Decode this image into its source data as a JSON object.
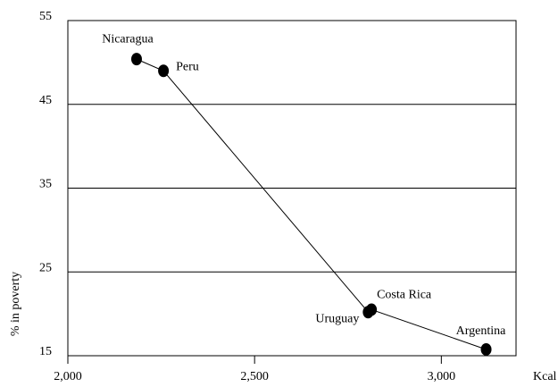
{
  "chart_data": {
    "type": "scatter",
    "x_label": "Kcal",
    "y_label": "% in poverty",
    "labels": [
      "Nicaragua",
      "Peru",
      "Uruguay",
      "Costa Rica",
      "Argentina"
    ],
    "x": [
      2184,
      2256,
      2804,
      2813,
      3120
    ],
    "values": [
      50.4,
      49.0,
      20.2,
      20.5,
      15.75
    ],
    "color": "#000000",
    "connect": true,
    "xlim": [
      2000,
      3200
    ],
    "ylim": [
      15,
      55
    ],
    "xticks": [
      {
        "value": 2000,
        "label": "2,000"
      },
      {
        "value": 2500,
        "label": "2,500"
      },
      {
        "value": 3000,
        "label": "3,000"
      }
    ],
    "yticks": [
      15,
      25,
      35,
      45,
      55
    ],
    "grid": true
  }
}
